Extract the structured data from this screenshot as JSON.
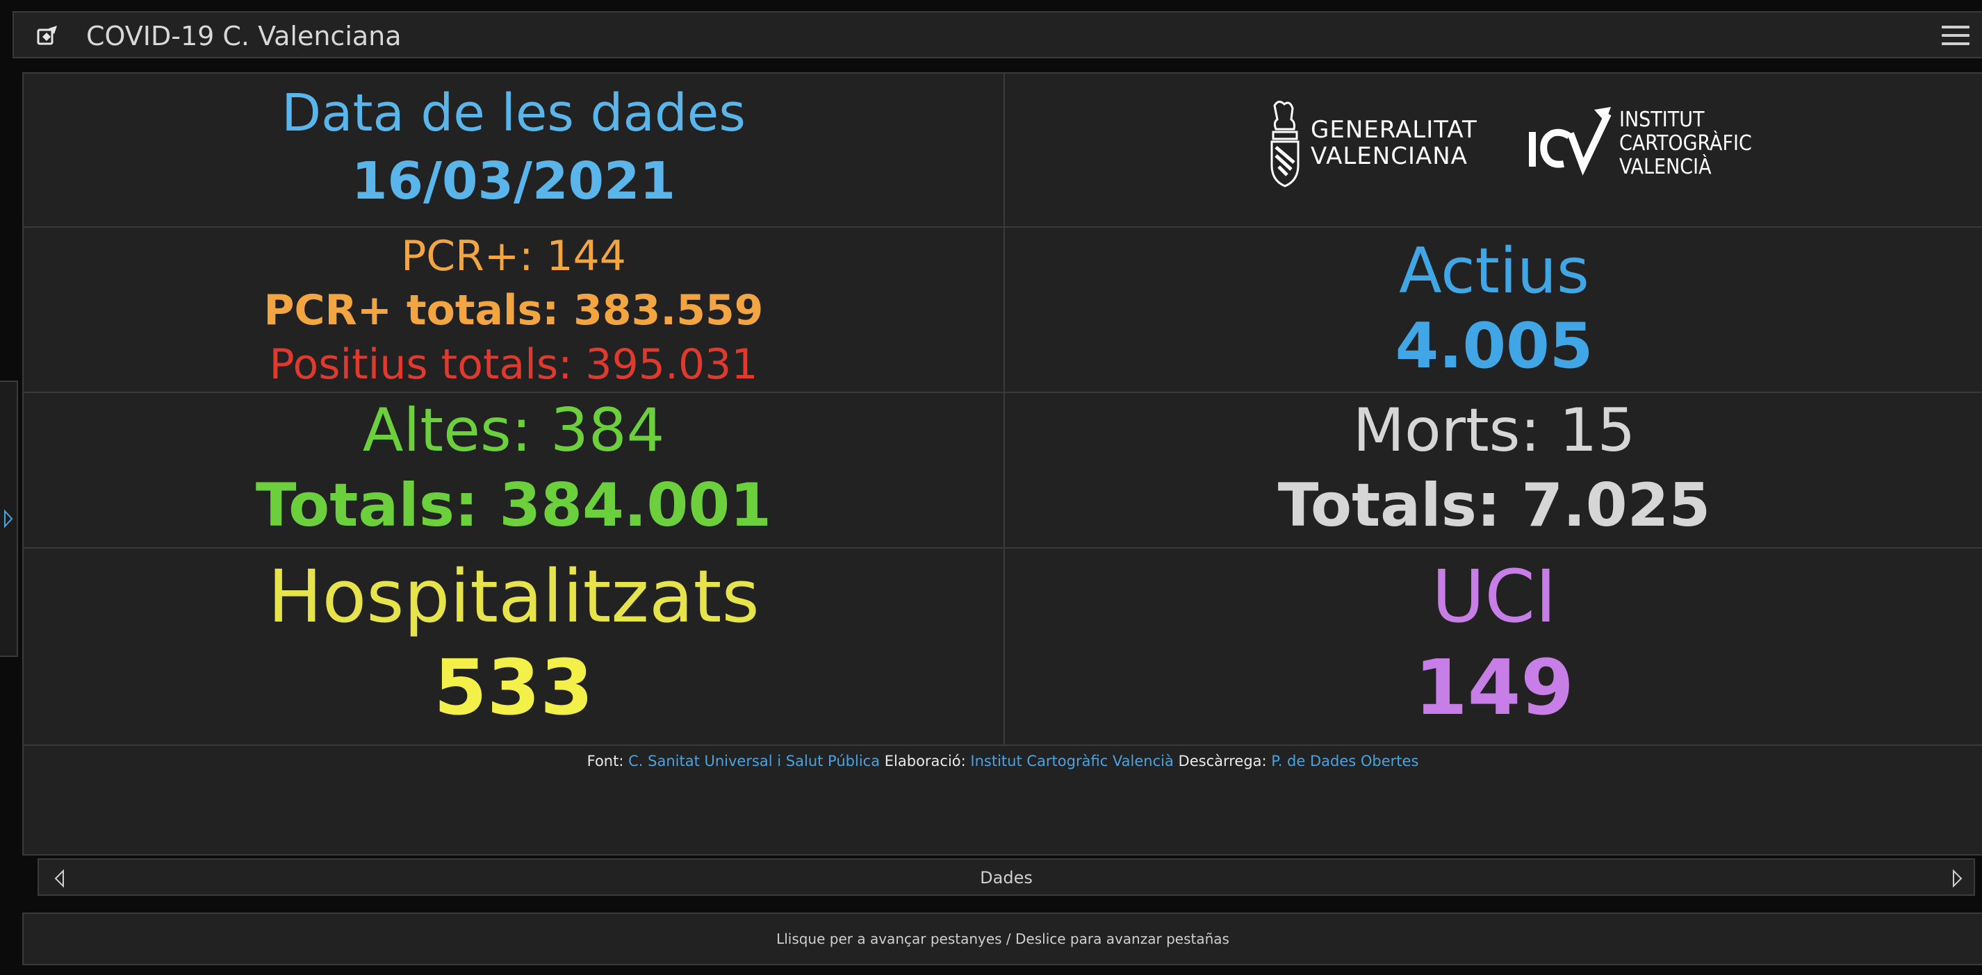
{
  "app": {
    "title": "COVID-19 C. Valenciana"
  },
  "icons": {
    "app": "logo-icon",
    "menu": "hamburger-menu-icon",
    "side": "chevron-right-icon",
    "prev": "chevron-left-icon",
    "next": "chevron-right-icon"
  },
  "date": {
    "label": "Data de les dades",
    "value": "16/03/2021"
  },
  "logos": {
    "gva": [
      "GENERALITAT",
      "VALENCIANA"
    ],
    "icv": [
      "INSTITUT",
      "CARTOGRÀFIC",
      "VALENCIÀ"
    ],
    "icv_mark": "ICV"
  },
  "pcr": {
    "daily": "PCR+: 144",
    "total": "PCR+ totals: 383.559",
    "positives_total": "Positius totals: 395.031"
  },
  "actius": {
    "label": "Actius",
    "value": "4.005"
  },
  "altes": {
    "daily": "Altes: 384",
    "total": "Totals: 384.001"
  },
  "morts": {
    "daily": "Morts: 15",
    "total": "Totals: 7.025"
  },
  "hospitalitzats": {
    "label": "Hospitalitzats",
    "value": "533"
  },
  "uci": {
    "label": "UCI",
    "value": "149"
  },
  "source": {
    "font_label": "Font:",
    "font_link": "C. Sanitat Universal i Salut Pública",
    "elaboracio_label": "Elaboració:",
    "elaboracio_link": "Institut Cartogràfic Valencià",
    "descarrega_label": "Descàrrega:",
    "descarrega_link": "P. de Dades Obertes"
  },
  "pager": {
    "label": "Dades"
  },
  "hint": "Llisque per a avançar pestanyes / Deslice para avanzar pestañas",
  "colors": {
    "blue": "#5ab6ea",
    "orange": "#f2a541",
    "red": "#e03a2e",
    "green": "#6cd03c",
    "white": "#d6d6d6",
    "yellow": "#f4f04a",
    "purple": "#c77ee6",
    "link": "#4aa3df"
  }
}
